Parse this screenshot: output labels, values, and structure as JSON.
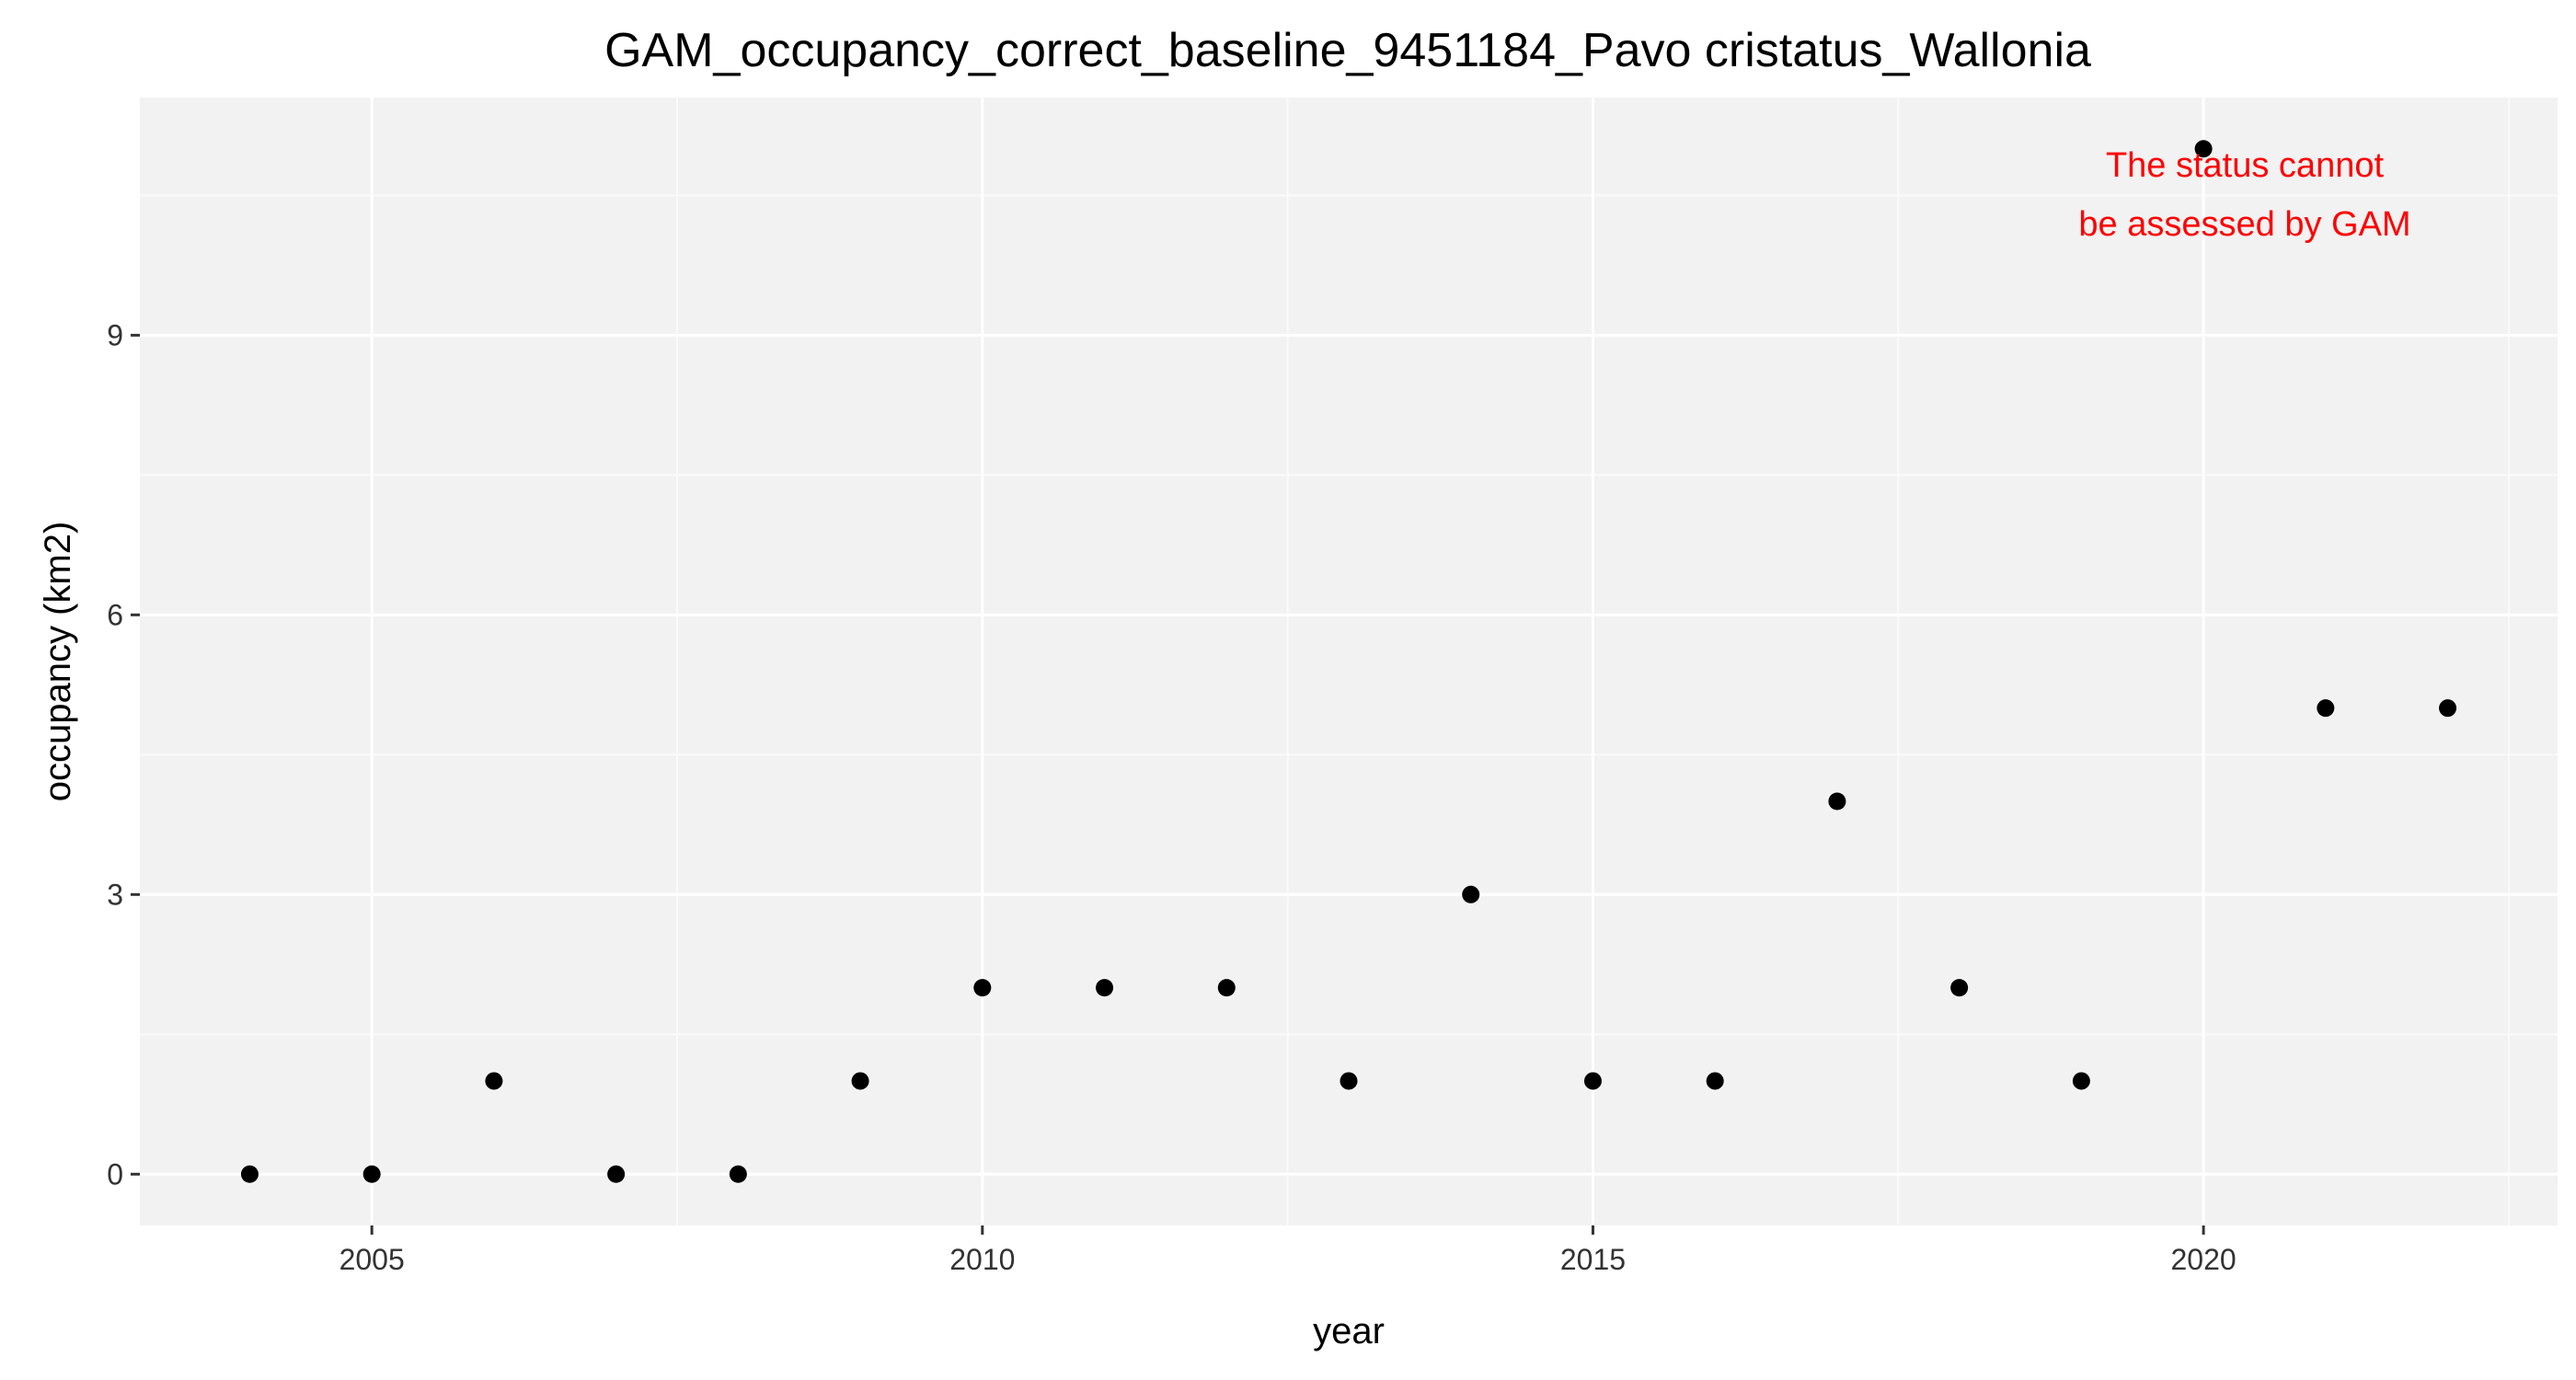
{
  "chart_data": {
    "type": "scatter",
    "title": "GAM_occupancy_correct_baseline_9451184_Pavo cristatus_Wallonia",
    "xlabel": "year",
    "ylabel": "occupancy (km2)",
    "x": [
      2004,
      2005,
      2006,
      2007,
      2008,
      2009,
      2010,
      2011,
      2012,
      2013,
      2014,
      2015,
      2016,
      2017,
      2018,
      2019,
      2020,
      2021,
      2022
    ],
    "y": [
      0,
      0,
      1,
      0,
      0,
      1,
      2,
      2,
      2,
      1,
      3,
      1,
      1,
      4,
      2,
      1,
      11,
      5,
      5
    ],
    "xlim": [
      2003.1,
      2022.9
    ],
    "ylim": [
      -0.55,
      11.55
    ],
    "x_ticks": [
      2005,
      2010,
      2015,
      2020
    ],
    "x_tick_labels": [
      "2005",
      "2010",
      "2015",
      "2020"
    ],
    "y_ticks": [
      0,
      3,
      6,
      9
    ],
    "y_tick_labels": [
      "0",
      "3",
      "6",
      "9"
    ],
    "grid": true,
    "annotation": {
      "lines": [
        "The status cannot",
        "be assessed by GAM"
      ],
      "color": "#ff0000"
    },
    "colors": {
      "panel": "#f2f2f2",
      "grid_major": "#ffffff",
      "grid_minor": "#fafafa",
      "point": "#000000"
    }
  }
}
